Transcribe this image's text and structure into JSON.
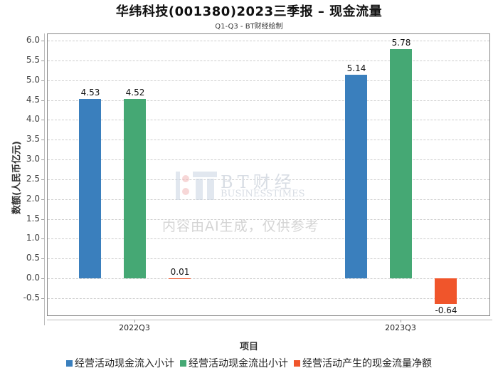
{
  "header": {
    "title": "华纬科技(001380)2023三季报 – 现金流量",
    "subtitle": "Q1-Q3 - BT财经绘制"
  },
  "watermark": {
    "brand": "BT财经",
    "brand_en": "BUSINESSTIMES",
    "notice": "内容由AI生成，仅供参考"
  },
  "axes": {
    "ylabel": "数额(人民币亿元)",
    "xlabel": "项目",
    "yticks": [
      "6.0",
      "5.5",
      "5.0",
      "4.5",
      "4.0",
      "3.5",
      "3.0",
      "2.5",
      "2.0",
      "1.5",
      "1.0",
      "0.5",
      "0.0",
      "-0.5"
    ]
  },
  "legend": [
    {
      "label": "经营活动现金流入小计",
      "color": "#3a7fbd"
    },
    {
      "label": "经营活动现金流出小计",
      "color": "#45a874"
    },
    {
      "label": "经营活动产生的现金流量净额",
      "color": "#f0552b"
    }
  ],
  "chart_data": {
    "type": "bar",
    "title": "华纬科技(001380)2023三季报 – 现金流量",
    "subtitle": "Q1-Q3 - BT财经绘制",
    "xlabel": "项目",
    "ylabel": "数额(人民币亿元)",
    "categories": [
      "2022Q3",
      "2023Q3"
    ],
    "series": [
      {
        "name": "经营活动现金流入小计",
        "color": "#3a7fbd",
        "values": [
          4.53,
          5.14
        ],
        "labels": [
          "4.53",
          "5.14"
        ]
      },
      {
        "name": "经营活动现金流出小计",
        "color": "#45a874",
        "values": [
          4.52,
          5.78
        ],
        "labels": [
          "4.52",
          "5.78"
        ]
      },
      {
        "name": "经营活动产生的现金流量净额",
        "color": "#f0552b",
        "values": [
          0.01,
          -0.64
        ],
        "labels": [
          "0.01",
          "-0.64"
        ]
      }
    ],
    "ylim": [
      -0.65,
      6.15
    ],
    "yticks": [
      6.0,
      5.5,
      5.0,
      4.5,
      4.0,
      3.5,
      3.0,
      2.5,
      2.0,
      1.5,
      1.0,
      0.5,
      0.0,
      -0.5
    ],
    "grid": true,
    "legend_position": "bottom"
  }
}
